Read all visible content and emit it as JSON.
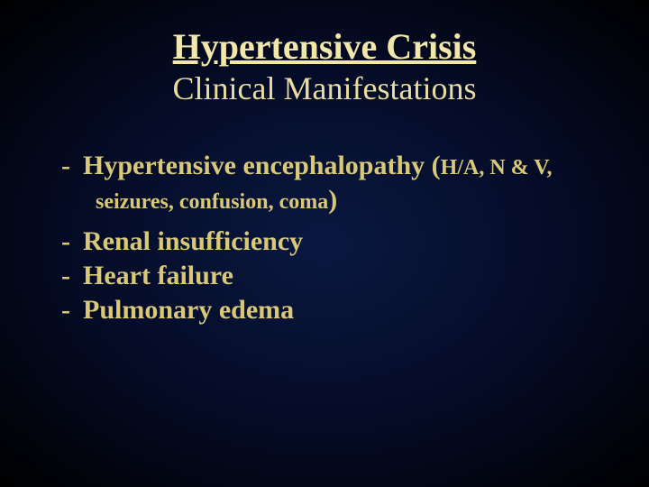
{
  "title": {
    "text": "Hypertensive Crisis",
    "fontsize": 40,
    "color": "#f2e6a8"
  },
  "subtitle": {
    "text": "Clinical Manifestations",
    "fontsize": 36,
    "color": "#e8dca0"
  },
  "body": {
    "color": "#d8c878",
    "fontsize_main": 30,
    "fontsize_detail": 24
  },
  "bullets": [
    {
      "main": "Hypertensive encephalopathy (",
      "detail_inline": "H/A, N & V,",
      "continuation": "seizures, confusion, coma",
      "close_paren": ")"
    },
    {
      "main": "Renal insufficiency"
    },
    {
      "main": "Heart failure"
    },
    {
      "main": "Pulmonary edema"
    }
  ]
}
